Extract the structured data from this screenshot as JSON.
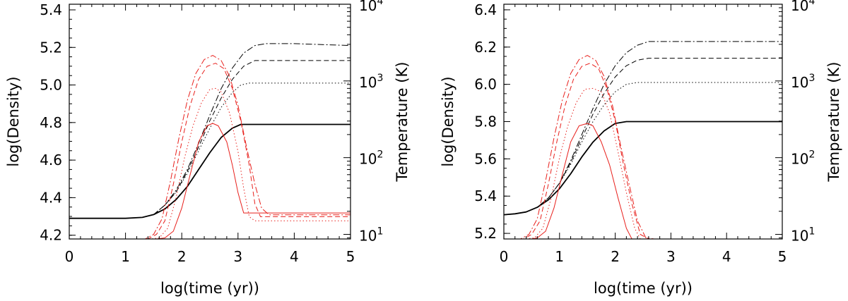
{
  "colors": {
    "density": "#000000",
    "temperature": "#e8201c",
    "background": "#ffffff"
  },
  "chart_data": [
    {
      "type": "line",
      "xlabel": "log(time (yr))",
      "ylabel": "log(Density)",
      "y2label": "Temperature (K)",
      "xlim": [
        0,
        5
      ],
      "ylim": [
        4.18,
        5.43
      ],
      "y2lim_log10": [
        0.94,
        4.0
      ],
      "y2scale": "log",
      "xticks": [
        "0",
        "1",
        "2",
        "3",
        "4",
        "5"
      ],
      "yticks": [
        "4.2",
        "4.4",
        "4.6",
        "4.8",
        "5.0",
        "5.2",
        "5.4"
      ],
      "y2ticks": [
        {
          "value": 10,
          "base": "10",
          "exp": "1"
        },
        {
          "value": 100,
          "base": "10",
          "exp": "2"
        },
        {
          "value": 1000,
          "base": "10",
          "exp": "3"
        },
        {
          "value": 10000,
          "base": "10",
          "exp": "4"
        }
      ],
      "series": [
        {
          "axis": "left",
          "color": "#000000",
          "dash": "solid",
          "width": 1.8,
          "x": [
            0,
            0.5,
            1.0,
            1.3,
            1.5,
            1.7,
            1.9,
            2.1,
            2.3,
            2.5,
            2.7,
            2.9,
            3.05,
            3.5,
            4.0,
            5.0
          ],
          "y": [
            4.29,
            4.29,
            4.29,
            4.295,
            4.31,
            4.34,
            4.39,
            4.46,
            4.55,
            4.64,
            4.72,
            4.77,
            4.79,
            4.79,
            4.79,
            4.79
          ]
        },
        {
          "axis": "left",
          "color": "#000000",
          "dash": "dot",
          "width": 1,
          "x": [
            0,
            1.0,
            1.3,
            1.5,
            1.7,
            1.9,
            2.1,
            2.3,
            2.5,
            2.7,
            2.9,
            3.05,
            3.2,
            4.0,
            5.0
          ],
          "y": [
            4.29,
            4.29,
            4.295,
            4.31,
            4.36,
            4.43,
            4.53,
            4.65,
            4.77,
            4.88,
            4.96,
            5.0,
            5.01,
            5.01,
            5.01
          ]
        },
        {
          "axis": "left",
          "color": "#000000",
          "dash": "dash",
          "width": 1,
          "x": [
            0,
            1.0,
            1.3,
            1.5,
            1.7,
            1.9,
            2.1,
            2.3,
            2.5,
            2.7,
            2.9,
            3.1,
            3.3,
            3.4,
            4.0,
            5.0
          ],
          "y": [
            4.29,
            4.29,
            4.295,
            4.31,
            4.36,
            4.43,
            4.54,
            4.67,
            4.81,
            4.93,
            5.03,
            5.1,
            5.13,
            5.13,
            5.13,
            5.13
          ]
        },
        {
          "axis": "left",
          "color": "#000000",
          "dash": "dashdot",
          "width": 1,
          "x": [
            0,
            1.0,
            1.3,
            1.5,
            1.7,
            1.9,
            2.1,
            2.3,
            2.5,
            2.7,
            2.9,
            3.1,
            3.3,
            3.5,
            4.0,
            5.0
          ],
          "y": [
            4.29,
            4.29,
            4.295,
            4.31,
            4.36,
            4.44,
            4.55,
            4.69,
            4.84,
            4.98,
            5.09,
            5.17,
            5.21,
            5.22,
            5.22,
            5.21
          ]
        },
        {
          "axis": "right",
          "color": "#e8201c",
          "dash": "solid",
          "width": 1,
          "x": [
            0,
            1.55,
            1.7,
            1.85,
            2.0,
            2.15,
            2.3,
            2.45,
            2.55,
            2.65,
            2.8,
            2.9,
            3.0,
            3.1,
            5.0
          ],
          "y": [
            8,
            8,
            9,
            11,
            22,
            60,
            160,
            260,
            280,
            260,
            160,
            80,
            35,
            19,
            19
          ]
        },
        {
          "axis": "right",
          "color": "#e8201c",
          "dash": "dot",
          "width": 1,
          "x": [
            0,
            1.45,
            1.6,
            1.75,
            1.9,
            2.05,
            2.2,
            2.35,
            2.5,
            2.6,
            2.7,
            2.85,
            3.0,
            3.1,
            3.2,
            3.3,
            5.0
          ],
          "y": [
            8,
            8,
            9,
            12,
            30,
            100,
            260,
            520,
            780,
            800,
            720,
            380,
            120,
            40,
            17,
            15,
            15
          ]
        },
        {
          "axis": "right",
          "color": "#e8201c",
          "dash": "dash",
          "width": 1,
          "x": [
            0,
            1.4,
            1.55,
            1.7,
            1.85,
            2.0,
            2.15,
            2.3,
            2.45,
            2.6,
            2.75,
            2.9,
            3.05,
            3.2,
            3.3,
            3.4,
            5.0
          ],
          "y": [
            8,
            8,
            10,
            15,
            45,
            160,
            480,
            1050,
            1550,
            1700,
            1450,
            800,
            300,
            80,
            25,
            17,
            17
          ]
        },
        {
          "axis": "right",
          "color": "#e8201c",
          "dash": "dashdot",
          "width": 1,
          "x": [
            0,
            1.35,
            1.5,
            1.65,
            1.8,
            1.95,
            2.1,
            2.25,
            2.4,
            2.55,
            2.7,
            2.85,
            3.0,
            3.15,
            3.3,
            3.42,
            3.55,
            5.0
          ],
          "y": [
            8,
            8,
            10,
            16,
            50,
            180,
            560,
            1250,
            1900,
            2150,
            1850,
            1150,
            480,
            140,
            45,
            22,
            18,
            18
          ]
        }
      ]
    },
    {
      "type": "line",
      "xlabel": "log(time (yr))",
      "ylabel": "log(Density)",
      "y2label": "Temperature (K)",
      "xlim": [
        0,
        5
      ],
      "ylim": [
        5.17,
        6.43
      ],
      "y2lim_log10": [
        0.94,
        4.0
      ],
      "y2scale": "log",
      "xticks": [
        "0",
        "1",
        "2",
        "3",
        "4",
        "5"
      ],
      "yticks": [
        "5.2",
        "5.4",
        "5.6",
        "5.8",
        "6.0",
        "6.2",
        "6.4"
      ],
      "y2ticks": [
        {
          "value": 10,
          "base": "10",
          "exp": "1"
        },
        {
          "value": 100,
          "base": "10",
          "exp": "2"
        },
        {
          "value": 1000,
          "base": "10",
          "exp": "3"
        },
        {
          "value": 10000,
          "base": "10",
          "exp": "4"
        }
      ],
      "series": [
        {
          "axis": "left",
          "color": "#000000",
          "dash": "solid",
          "width": 1.8,
          "x": [
            0,
            0.2,
            0.4,
            0.6,
            0.8,
            1.0,
            1.2,
            1.4,
            1.6,
            1.8,
            2.0,
            2.2,
            2.3,
            3.0,
            5.0
          ],
          "y": [
            5.3,
            5.305,
            5.315,
            5.34,
            5.38,
            5.44,
            5.52,
            5.61,
            5.69,
            5.75,
            5.79,
            5.8,
            5.8,
            5.8,
            5.8
          ]
        },
        {
          "axis": "left",
          "color": "#000000",
          "dash": "dot",
          "width": 1,
          "x": [
            0,
            0.2,
            0.4,
            0.6,
            0.8,
            1.0,
            1.2,
            1.4,
            1.6,
            1.8,
            2.0,
            2.2,
            2.4,
            2.6,
            3.0,
            5.0
          ],
          "y": [
            5.3,
            5.305,
            5.315,
            5.34,
            5.39,
            5.47,
            5.57,
            5.69,
            5.8,
            5.89,
            5.96,
            6.0,
            6.01,
            6.01,
            6.01,
            6.01
          ]
        },
        {
          "axis": "left",
          "color": "#000000",
          "dash": "dash",
          "width": 1,
          "x": [
            0,
            0.2,
            0.4,
            0.6,
            0.8,
            1.0,
            1.2,
            1.4,
            1.6,
            1.8,
            2.0,
            2.2,
            2.4,
            2.6,
            2.8,
            3.0,
            5.0
          ],
          "y": [
            5.3,
            5.305,
            5.315,
            5.34,
            5.39,
            5.47,
            5.58,
            5.71,
            5.84,
            5.95,
            6.04,
            6.1,
            6.13,
            6.14,
            6.14,
            6.14,
            6.14
          ]
        },
        {
          "axis": "left",
          "color": "#000000",
          "dash": "dashdot",
          "width": 1,
          "x": [
            0,
            0.2,
            0.4,
            0.6,
            0.8,
            1.0,
            1.2,
            1.4,
            1.6,
            1.8,
            2.0,
            2.2,
            2.4,
            2.6,
            2.8,
            3.0,
            5.0
          ],
          "y": [
            5.3,
            5.305,
            5.315,
            5.34,
            5.39,
            5.47,
            5.59,
            5.73,
            5.87,
            6.0,
            6.1,
            6.17,
            6.21,
            6.23,
            6.23,
            6.23,
            6.23
          ]
        },
        {
          "axis": "right",
          "color": "#e8201c",
          "dash": "solid",
          "width": 1,
          "x": [
            0,
            0.5,
            0.6,
            0.75,
            0.9,
            1.05,
            1.2,
            1.35,
            1.5,
            1.6,
            1.75,
            1.9,
            2.05,
            2.2,
            2.3,
            5.0
          ],
          "y": [
            8,
            8,
            9,
            11,
            22,
            60,
            160,
            260,
            280,
            260,
            160,
            80,
            30,
            12,
            8,
            8
          ]
        },
        {
          "axis": "right",
          "color": "#e8201c",
          "dash": "dot",
          "width": 1,
          "x": [
            0,
            0.4,
            0.55,
            0.7,
            0.85,
            1.0,
            1.15,
            1.3,
            1.45,
            1.6,
            1.75,
            1.9,
            2.05,
            2.2,
            2.35,
            2.45,
            5.0
          ],
          "y": [
            8,
            8,
            9,
            12,
            30,
            100,
            260,
            520,
            780,
            800,
            720,
            380,
            120,
            35,
            12,
            8,
            8
          ]
        },
        {
          "axis": "right",
          "color": "#e8201c",
          "dash": "dash",
          "width": 1,
          "x": [
            0,
            0.35,
            0.5,
            0.65,
            0.8,
            0.95,
            1.1,
            1.25,
            1.4,
            1.55,
            1.7,
            1.85,
            2.0,
            2.15,
            2.3,
            2.45,
            2.6,
            5.0
          ],
          "y": [
            8,
            8,
            10,
            15,
            45,
            160,
            480,
            1050,
            1550,
            1700,
            1450,
            800,
            300,
            80,
            25,
            10,
            8,
            8
          ]
        },
        {
          "axis": "right",
          "color": "#e8201c",
          "dash": "dashdot",
          "width": 1,
          "x": [
            0,
            0.3,
            0.45,
            0.6,
            0.75,
            0.9,
            1.05,
            1.2,
            1.35,
            1.5,
            1.65,
            1.8,
            1.95,
            2.1,
            2.25,
            2.4,
            2.55,
            2.7,
            5.0
          ],
          "y": [
            8,
            8,
            10,
            16,
            50,
            180,
            560,
            1250,
            1900,
            2150,
            1850,
            1150,
            480,
            140,
            45,
            15,
            9,
            8,
            8
          ]
        }
      ]
    }
  ]
}
